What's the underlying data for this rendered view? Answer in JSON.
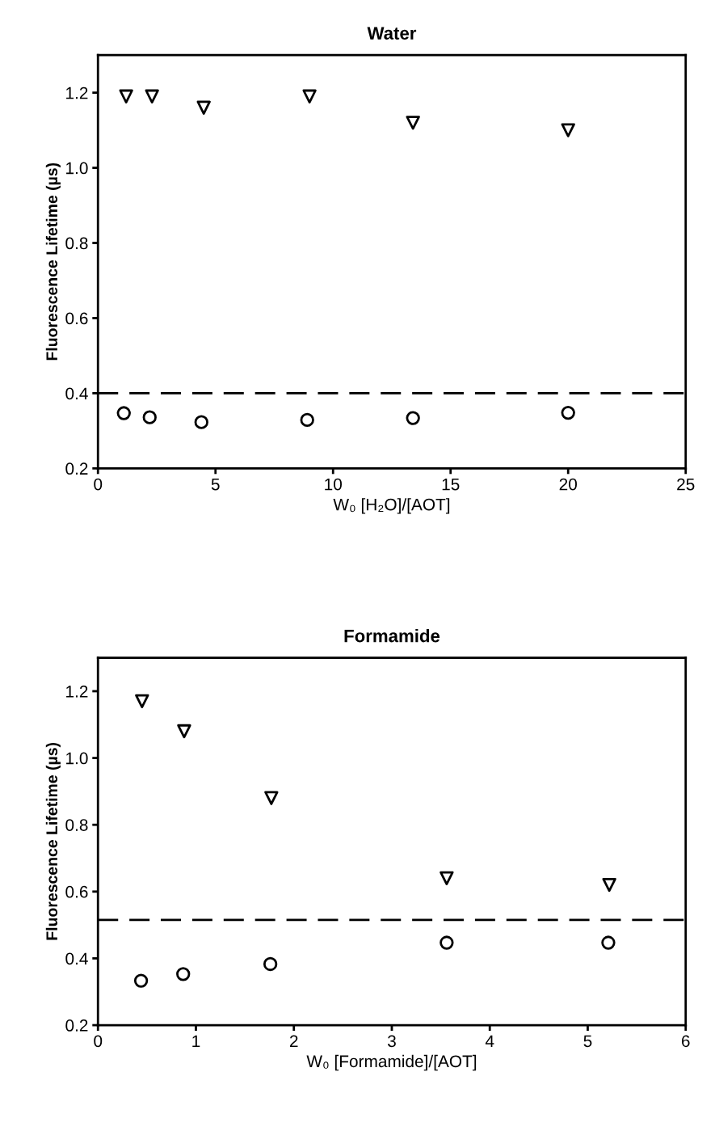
{
  "chart_data": [
    {
      "type": "scatter",
      "title": "Water",
      "xlabel": "W₀ [H₂O]/[AOT]",
      "ylabel": "Fluorescence Lifetime (µs)",
      "xlim": [
        0,
        25
      ],
      "xticks": [
        0,
        5,
        10,
        15,
        20,
        25
      ],
      "ylim": [
        0.2,
        1.3
      ],
      "yticks": [
        {
          "value": 0.2,
          "label": "0.2"
        },
        {
          "value": 0.4,
          "label": "0.4"
        },
        {
          "value": 0.6,
          "label": "0.6"
        },
        {
          "value": 0.8,
          "label": "0.8"
        },
        {
          "value": 1.0,
          "label": "1.0"
        },
        {
          "value": 1.2,
          "label": "1.2"
        }
      ],
      "grid": false,
      "legend": false,
      "series": [
        {
          "color": "#000000",
          "marker": "triangle",
          "x": [
            1.2,
            2.3,
            4.5,
            9.0,
            13.4,
            20.0
          ],
          "values": [
            1.19,
            1.19,
            1.16,
            1.19,
            1.12,
            1.1
          ]
        },
        {
          "color": "#000000",
          "marker": "circle",
          "x": [
            1.1,
            2.2,
            4.4,
            8.9,
            13.4,
            20.0
          ],
          "values": [
            0.347,
            0.336,
            0.323,
            0.329,
            0.334,
            0.348
          ]
        }
      ],
      "ref_lines": [
        {
          "axis": "y",
          "value": 0.4,
          "color": "#000000",
          "line_style": "dashed"
        }
      ]
    },
    {
      "type": "scatter",
      "title": "Formamide",
      "xlabel": "W₀ [Formamide]/[AOT]",
      "ylabel": "Fluorescence Lifetime (µs)",
      "xlim": [
        0,
        6
      ],
      "xticks": [
        0,
        1,
        2,
        3,
        4,
        5,
        6
      ],
      "ylim": [
        0.2,
        1.3
      ],
      "yticks": [
        {
          "value": 0.2,
          "label": "0.2"
        },
        {
          "value": 0.4,
          "label": "0.4"
        },
        {
          "value": 0.6,
          "label": "0.6"
        },
        {
          "value": 0.8,
          "label": "0.8"
        },
        {
          "value": 1.0,
          "label": "1.0"
        },
        {
          "value": 1.2,
          "label": "1.2"
        }
      ],
      "grid": false,
      "legend": false,
      "series": [
        {
          "color": "#000000",
          "marker": "triangle",
          "x": [
            0.45,
            0.88,
            1.77,
            3.56,
            5.22
          ],
          "values": [
            1.17,
            1.08,
            0.88,
            0.64,
            0.62
          ]
        },
        {
          "color": "#000000",
          "marker": "circle",
          "x": [
            0.44,
            0.87,
            1.76,
            3.56,
            5.21
          ],
          "values": [
            0.333,
            0.353,
            0.383,
            0.447,
            0.447
          ]
        }
      ],
      "ref_lines": [
        {
          "axis": "y",
          "value": 0.515,
          "color": "#000000",
          "line_style": "dashed"
        }
      ]
    }
  ]
}
